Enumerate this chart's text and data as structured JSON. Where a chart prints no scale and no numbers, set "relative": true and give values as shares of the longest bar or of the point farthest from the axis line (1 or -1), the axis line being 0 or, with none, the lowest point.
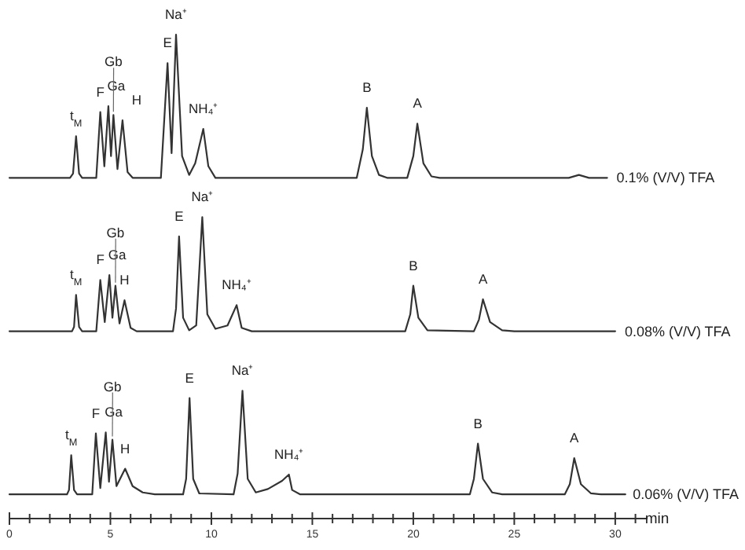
{
  "chart_data": {
    "type": "line",
    "relative": true,
    "xlim": [
      0,
      31.6
    ],
    "xlabel": "min",
    "xticks": [
      0,
      {
        "value": 1,
        "label": null
      },
      {
        "value": 2,
        "label": null
      },
      {
        "value": 3,
        "label": null
      },
      {
        "value": 4,
        "label": null
      },
      5,
      {
        "value": 6,
        "label": null
      },
      {
        "value": 7,
        "label": null
      },
      {
        "value": 8,
        "label": null
      },
      {
        "value": 9,
        "label": null
      },
      10,
      {
        "value": 11,
        "label": null
      },
      {
        "value": 12,
        "label": null
      },
      {
        "value": 13,
        "label": null
      },
      {
        "value": 14,
        "label": null
      },
      15,
      {
        "value": 16,
        "label": null
      },
      {
        "value": 17,
        "label": null
      },
      {
        "value": 18,
        "label": null
      },
      {
        "value": 19,
        "label": null
      },
      20,
      {
        "value": 21,
        "label": null
      },
      {
        "value": 22,
        "label": null
      },
      {
        "value": 23,
        "label": null
      },
      {
        "value": 24,
        "label": null
      },
      25,
      {
        "value": 26,
        "label": null
      },
      {
        "value": 27,
        "label": null
      },
      {
        "value": 28,
        "label": null
      },
      {
        "value": 29,
        "label": null
      },
      30,
      {
        "value": 31,
        "label": null
      }
    ],
    "series": [
      {
        "name": "0.1% (V/V) TFA",
        "color": "#333333",
        "x": [
          0,
          3.0,
          3.15,
          3.3,
          3.45,
          3.6,
          4.3,
          4.5,
          4.7,
          4.9,
          5.03,
          5.15,
          5.35,
          5.6,
          5.85,
          6.1,
          7.5,
          7.83,
          8.03,
          8.25,
          8.55,
          8.9,
          9.2,
          9.6,
          9.85,
          10.2,
          17.2,
          17.5,
          17.7,
          17.95,
          18.3,
          18.7,
          19.7,
          20.0,
          20.2,
          20.5,
          20.9,
          21.3,
          27.7,
          28.2,
          28.7,
          29.6
        ],
        "values": [
          0.704,
          0.704,
          0.713,
          0.79,
          0.713,
          0.704,
          0.704,
          0.84,
          0.728,
          0.852,
          0.749,
          0.834,
          0.722,
          0.823,
          0.716,
          0.704,
          0.704,
          0.941,
          0.755,
          1,
          0.749,
          0.71,
          0.734,
          0.805,
          0.728,
          0.704,
          0.704,
          0.763,
          0.849,
          0.749,
          0.71,
          0.704,
          0.704,
          0.749,
          0.816,
          0.734,
          0.707,
          0.704,
          0.704,
          0.71,
          0.704,
          0.704
        ]
      },
      {
        "name": "0.08% (V/V) TFA",
        "color": "#333333",
        "x": [
          0,
          3.1,
          3.2,
          3.3,
          3.45,
          3.6,
          4.3,
          4.5,
          4.72,
          4.95,
          5.1,
          5.25,
          5.45,
          5.7,
          6.0,
          6.3,
          8.1,
          8.25,
          8.4,
          8.6,
          8.9,
          9.25,
          9.55,
          9.8,
          10.2,
          10.8,
          11.25,
          11.5,
          12.0,
          19.6,
          19.85,
          20.0,
          20.25,
          20.7,
          23.0,
          23.25,
          23.45,
          23.8,
          24.4,
          25,
          30.0
        ],
        "values": [
          0.387,
          0.387,
          0.396,
          0.462,
          0.396,
          0.387,
          0.387,
          0.493,
          0.406,
          0.503,
          0.415,
          0.481,
          0.403,
          0.451,
          0.394,
          0.387,
          0.387,
          0.434,
          0.583,
          0.415,
          0.389,
          0.399,
          0.623,
          0.422,
          0.392,
          0.399,
          0.441,
          0.394,
          0.387,
          0.387,
          0.422,
          0.481,
          0.415,
          0.389,
          0.387,
          0.411,
          0.453,
          0.406,
          0.389,
          0.387,
          0.387
        ]
      },
      {
        "name": "0.06% (V/V) TFA",
        "color": "#333333",
        "x": [
          0,
          2.85,
          2.95,
          3.06,
          3.2,
          3.35,
          4.1,
          4.28,
          4.5,
          4.77,
          4.93,
          5.1,
          5.3,
          5.73,
          6.1,
          6.6,
          7.2,
          8.6,
          8.75,
          8.92,
          9.1,
          9.4,
          11.1,
          11.3,
          11.54,
          11.8,
          12.2,
          12.8,
          13.5,
          13.84,
          14.0,
          14.4,
          22.8,
          23.0,
          23.2,
          23.45,
          23.9,
          24.4,
          27.5,
          27.75,
          27.97,
          28.3,
          28.8,
          29.3,
          30.5
        ],
        "values": [
          0.05,
          0.05,
          0.059,
          0.131,
          0.059,
          0.05,
          0.05,
          0.176,
          0.063,
          0.178,
          0.076,
          0.163,
          0.067,
          0.103,
          0.067,
          0.054,
          0.05,
          0.05,
          0.082,
          0.249,
          0.082,
          0.052,
          0.05,
          0.093,
          0.264,
          0.082,
          0.054,
          0.061,
          0.078,
          0.091,
          0.059,
          0.05,
          0.05,
          0.082,
          0.155,
          0.082,
          0.054,
          0.05,
          0.05,
          0.071,
          0.125,
          0.071,
          0.052,
          0.05,
          0.05
        ]
      }
    ],
    "annotations": [
      {
        "text": "t$_{M}$",
        "x": 3.3,
        "y": 0.79
      },
      {
        "text": "F",
        "x": 4.5,
        "y": 0.84
      },
      {
        "text": "Ga",
        "x": 4.9,
        "y": 0.852
      },
      {
        "text": "Gb",
        "x": 5.15,
        "y": 0.834
      },
      {
        "text": "H",
        "x": 5.6,
        "y": 0.823
      },
      {
        "text": "E",
        "x": 7.83,
        "y": 0.941
      },
      {
        "text": "Na⁺",
        "x": 8.25,
        "y": 1
      },
      {
        "text": "NH₄⁺",
        "x": 9.6,
        "y": 0.805
      },
      {
        "text": "B",
        "x": 17.7,
        "y": 0.849
      },
      {
        "text": "A",
        "x": 20.2,
        "y": 0.816
      },
      {
        "text": "t$_{M}$",
        "x": 3.3,
        "y": 0.462
      },
      {
        "text": "F",
        "x": 4.5,
        "y": 0.493
      },
      {
        "text": "Ga",
        "x": 4.95,
        "y": 0.503
      },
      {
        "text": "Gb",
        "x": 5.25,
        "y": 0.481
      },
      {
        "text": "H",
        "x": 5.7,
        "y": 0.451
      },
      {
        "text": "E",
        "x": 8.4,
        "y": 0.583
      },
      {
        "text": "Na⁺",
        "x": 9.55,
        "y": 0.623
      },
      {
        "text": "NH₄⁺",
        "x": 11.25,
        "y": 0.441
      },
      {
        "text": "B",
        "x": 20.0,
        "y": 0.481
      },
      {
        "text": "A",
        "x": 23.45,
        "y": 0.453
      },
      {
        "text": "t$_{M}$",
        "x": 3.06,
        "y": 0.131
      },
      {
        "text": "F",
        "x": 4.28,
        "y": 0.176
      },
      {
        "text": "Ga",
        "x": 4.77,
        "y": 0.178
      },
      {
        "text": "Gb",
        "x": 5.1,
        "y": 0.163
      },
      {
        "text": "H",
        "x": 5.73,
        "y": 0.103
      },
      {
        "text": "E",
        "x": 8.92,
        "y": 0.249
      },
      {
        "text": "Na⁺",
        "x": 11.54,
        "y": 0.264
      },
      {
        "text": "NH₄⁺",
        "x": 13.84,
        "y": 0.091
      },
      {
        "text": "B",
        "x": 23.2,
        "y": 0.155
      },
      {
        "text": "A",
        "x": 27.97,
        "y": 0.125
      }
    ]
  }
}
